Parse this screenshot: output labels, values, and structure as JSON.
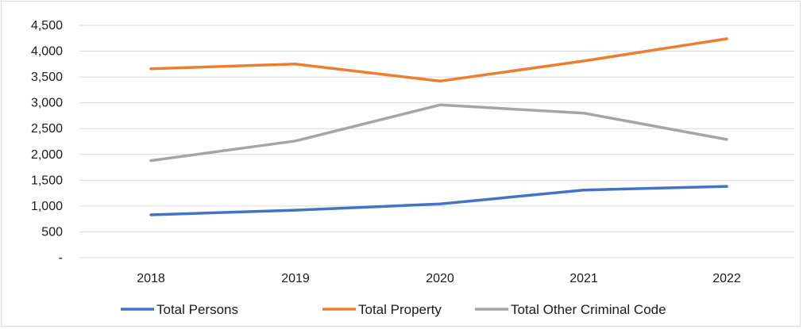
{
  "chart_data": {
    "type": "line",
    "categories": [
      "2018",
      "2019",
      "2020",
      "2021",
      "2022"
    ],
    "series": [
      {
        "name": "Total Persons",
        "values": [
          830,
          920,
          1040,
          1310,
          1380
        ],
        "color": "#4472c4"
      },
      {
        "name": "Total Property",
        "values": [
          3660,
          3750,
          3420,
          3810,
          4240
        ],
        "color": "#ed7d31"
      },
      {
        "name": "Total Other Criminal Code",
        "values": [
          1880,
          2260,
          2960,
          2800,
          2290
        ],
        "color": "#a5a5a5"
      }
    ],
    "ylim": [
      0,
      4500
    ],
    "yticks": [
      0,
      500,
      1000,
      1500,
      2000,
      2500,
      3000,
      3500,
      4000,
      4500
    ],
    "ytick_labels": [
      "-",
      "500",
      "1,000",
      "1,500",
      "2,000",
      "2,500",
      "3,000",
      "3,500",
      "4,000",
      "4,500"
    ],
    "grid": true,
    "legend_position": "bottom",
    "title": "",
    "xlabel": "",
    "ylabel": ""
  }
}
